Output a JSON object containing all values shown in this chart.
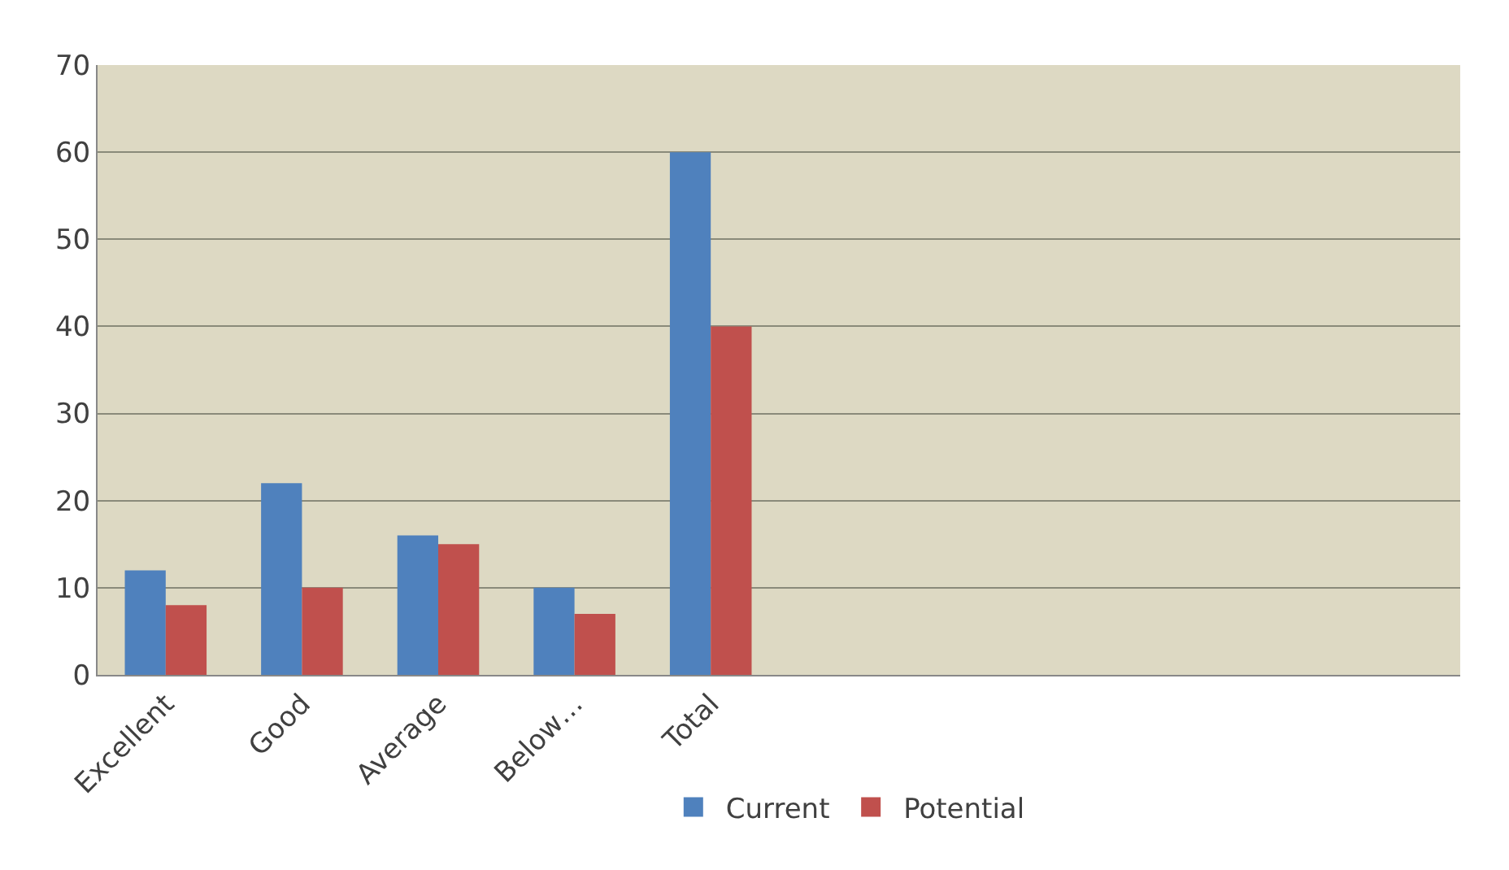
{
  "chart_data": {
    "type": "bar",
    "categories": [
      "Excellent",
      "Good",
      "Average",
      "Below…",
      "Total",
      null,
      null,
      null,
      null,
      null
    ],
    "series": [
      {
        "name": "Current",
        "color": "#4f81bd",
        "values": [
          12,
          22,
          16,
          10,
          60,
          null,
          null,
          null,
          null,
          null
        ]
      },
      {
        "name": "Potential",
        "color": "#c0504d",
        "values": [
          8,
          10,
          15,
          7,
          40,
          null,
          null,
          null,
          null,
          null
        ]
      }
    ],
    "ylim": [
      0,
      70
    ],
    "yticks": [
      0,
      10,
      20,
      30,
      40,
      50,
      60,
      70
    ],
    "grid": "y",
    "legend": "bottom"
  }
}
